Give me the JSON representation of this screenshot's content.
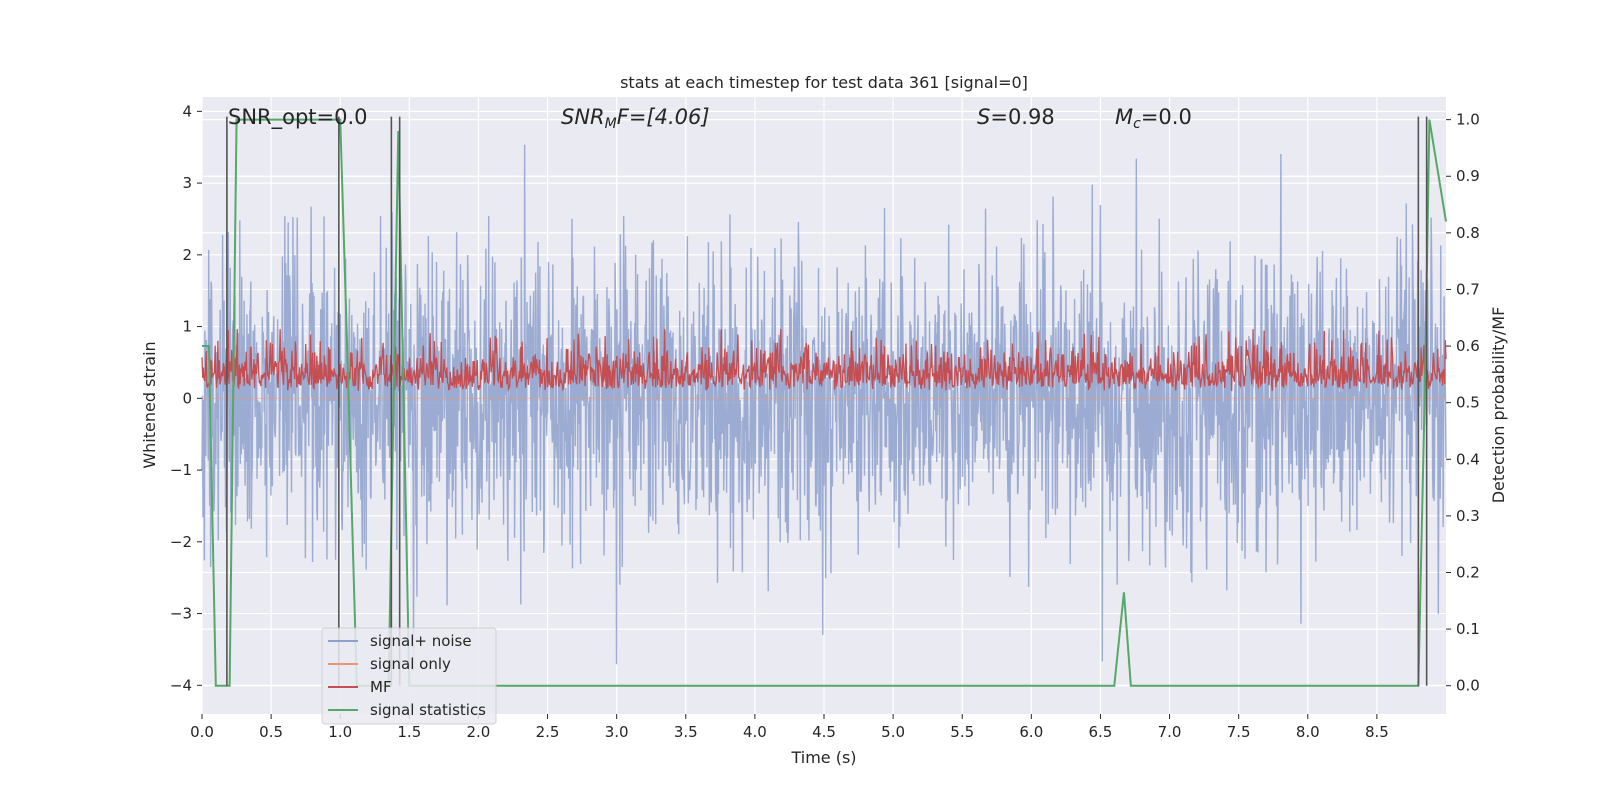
{
  "chart_data": {
    "type": "line",
    "title": "stats at each timestep for test data 361 [signal=0]",
    "xlabel": "Time (s)",
    "ylabel": "Whitened strain",
    "ylabel_right": "Detection probability/MF",
    "xlim": [
      0.0,
      9.0
    ],
    "ylim": [
      -4.4,
      4.2
    ],
    "ylim_right": [
      -0.05,
      1.04
    ],
    "x_ticks": [
      "0.0",
      "0.5",
      "1.0",
      "1.5",
      "2.0",
      "2.5",
      "3.0",
      "3.5",
      "4.0",
      "4.5",
      "5.0",
      "5.5",
      "6.0",
      "6.5",
      "7.0",
      "7.5",
      "8.0",
      "8.5"
    ],
    "y_ticks": [
      "-4",
      "-3",
      "-2",
      "-1",
      "0",
      "1",
      "2",
      "3",
      "4"
    ],
    "y_right_ticks": [
      "0.0",
      "0.1",
      "0.2",
      "0.3",
      "0.4",
      "0.5",
      "0.6",
      "0.7",
      "0.8",
      "0.9",
      "1.0"
    ],
    "grid": true,
    "legend_position": "lower-left",
    "annotations": {
      "snr_opt": "SNR_opt=0.0",
      "snr_mf_var": "SNR",
      "snr_mf_sub": "M",
      "snr_mf_rest": "F=[4.06]",
      "s_var": "S",
      "s_rest": "=0.98",
      "mc_var": "M",
      "mc_sub": "c",
      "mc_rest": "=0.0"
    },
    "series": [
      {
        "name": "signal+ noise",
        "color": "#8da0cb",
        "axis": "left",
        "description_range": [
          -3.8,
          3.7
        ],
        "std": 1.0
      },
      {
        "name": "signal only",
        "color": "#e8967a",
        "axis": "left",
        "values": "flat at 0"
      },
      {
        "name": "MF",
        "color": "#c44e52",
        "axis": "right",
        "approx_range": [
          0.52,
          0.63
        ]
      },
      {
        "name": "signal statistics",
        "color": "#55a868",
        "axis": "right",
        "x": [
          0.0,
          0.05,
          0.1,
          0.12,
          0.18,
          0.2,
          0.25,
          1.0,
          1.05,
          1.12,
          1.35,
          1.42,
          1.5,
          6.6,
          6.67,
          6.72,
          8.8,
          8.85,
          8.88,
          9.0
        ],
        "y": [
          0.6,
          0.6,
          0.0,
          0.0,
          0.0,
          0.0,
          1.0,
          1.0,
          0.6,
          0.0,
          0.0,
          0.98,
          0.0,
          0.0,
          0.165,
          0.0,
          0.0,
          0.56,
          1.0,
          0.82
        ]
      }
    ],
    "vertical_lines_x": [
      0.18,
      0.99,
      1.37,
      1.43,
      8.8,
      8.86
    ]
  }
}
